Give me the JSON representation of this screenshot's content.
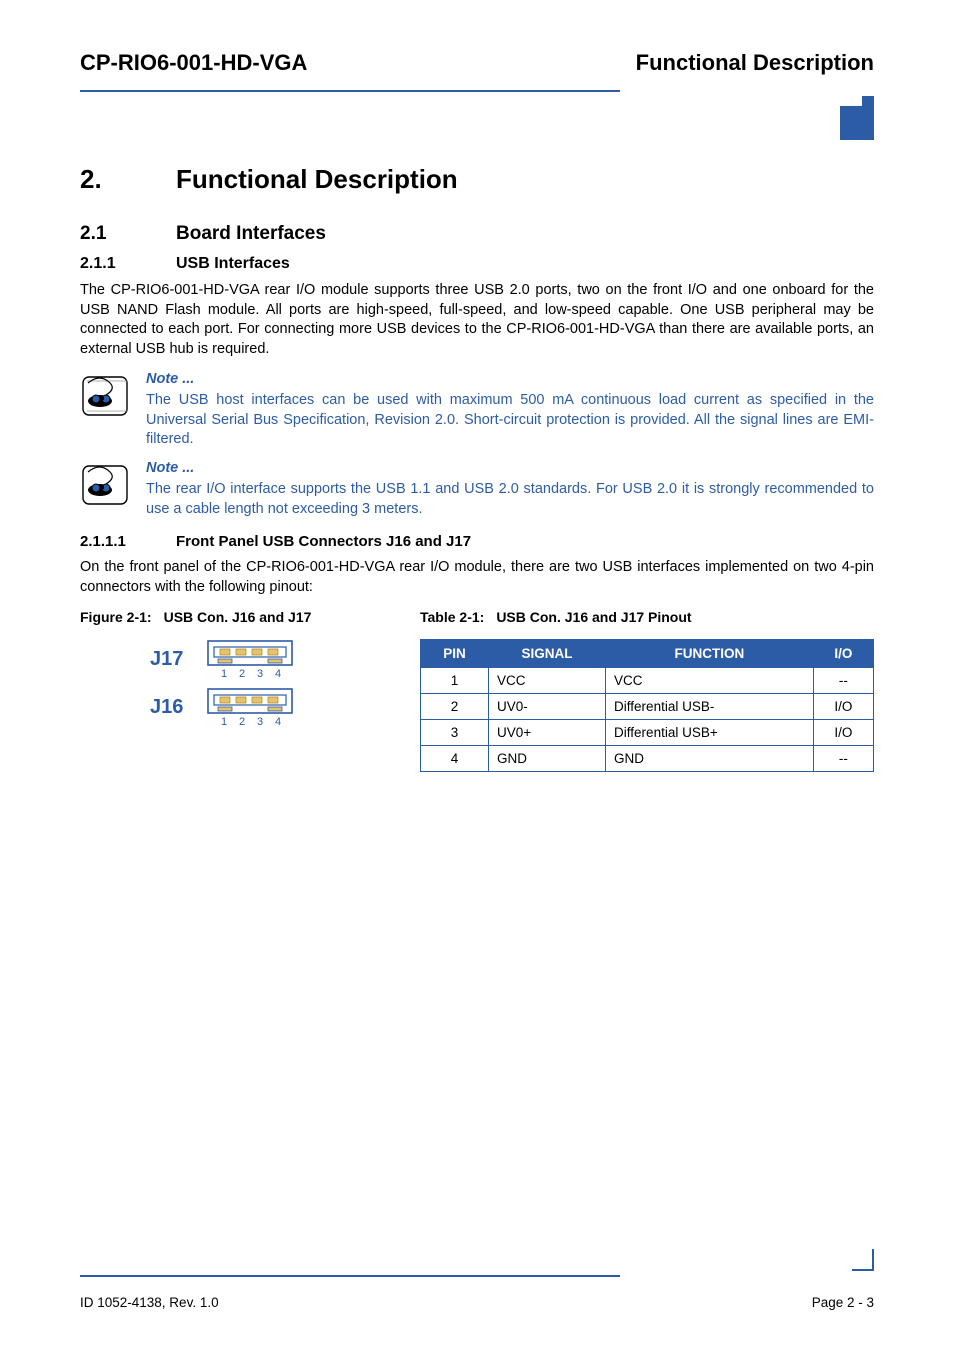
{
  "header": {
    "left": "CP-RIO6-001-HD-VGA",
    "right": "Functional Description"
  },
  "colors": {
    "accent": "#2d5ca6",
    "text": "#000000",
    "bg": "#ffffff",
    "table_header_bg": "#2d5ca6",
    "table_header_fg": "#ffffff",
    "note_text": "#2d5ca6"
  },
  "chapter": {
    "num": "2.",
    "title": "Functional Description"
  },
  "section": {
    "num": "2.1",
    "title": "Board Interfaces"
  },
  "subsection": {
    "num": "2.1.1",
    "title": "USB Interfaces"
  },
  "para1": "The CP-RIO6-001-HD-VGA rear I/O module supports three USB 2.0 ports, two on the front I/O and one onboard for the USB NAND Flash module. All ports are high-speed, full-speed, and low-speed capable. One USB peripheral may be connected to each port. For connecting more USB devices to the CP-RIO6-001-HD-VGA than there are available ports, an external USB hub is required.",
  "note1": {
    "title": "Note ...",
    "body": "The USB host interfaces can be used with maximum 500 mA continuous load current as specified in the Universal Serial Bus Specification, Revision 2.0. Short-circuit protection is provided. All the signal lines are EMI-filtered."
  },
  "note2": {
    "title": "Note ...",
    "body": "The rear I/O interface supports the USB 1.1 and USB 2.0 standards. For USB 2.0 it is strongly recommended to use a cable length not exceeding 3 meters."
  },
  "subsubsection": {
    "num": "2.1.1.1",
    "title": "Front Panel USB Connectors J16 and J17"
  },
  "para2": "On the front panel of the CP-RIO6-001-HD-VGA rear I/O module, there are two USB interfaces implemented on two 4-pin connectors with the following pinout:",
  "figure_caption": {
    "label": "Figure 2-1:",
    "text": "USB Con. J16 and J17"
  },
  "table_caption": {
    "label": "Table 2-1:",
    "text": "USB Con. J16 and J17 Pinout"
  },
  "connectors": [
    {
      "label": "J17",
      "pin_numbers": [
        "1",
        "2",
        "3",
        "4"
      ],
      "pin_color": "#e6c36a",
      "outline": "#2d5ca6"
    },
    {
      "label": "J16",
      "pin_numbers": [
        "1",
        "2",
        "3",
        "4"
      ],
      "pin_color": "#e6c36a",
      "outline": "#2d5ca6"
    }
  ],
  "pinout_table": {
    "columns": [
      "PIN",
      "SIGNAL",
      "FUNCTION",
      "I/O"
    ],
    "rows": [
      [
        "1",
        "VCC",
        "VCC",
        "--"
      ],
      [
        "2",
        "UV0-",
        "Differential USB-",
        "I/O"
      ],
      [
        "3",
        "UV0+",
        "Differential USB+",
        "I/O"
      ],
      [
        "4",
        "GND",
        "GND",
        "--"
      ]
    ],
    "col_align": [
      "center",
      "left",
      "left",
      "center"
    ]
  },
  "footer": {
    "left": "ID 1052-4138, Rev. 1.0",
    "right": "Page 2 - 3"
  }
}
